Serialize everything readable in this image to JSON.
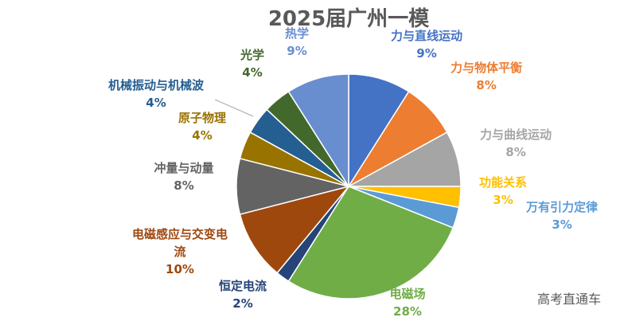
{
  "chart_data": {
    "type": "pie",
    "title": "2025届广州一模",
    "slices": [
      {
        "name": "力与直线运动",
        "label_lines": [
          "力与直线运动"
        ],
        "value": 9,
        "value_label": "9%",
        "color": "#4472C4"
      },
      {
        "name": "力与物体平衡",
        "label_lines": [
          "力与物体平衡"
        ],
        "value": 8,
        "value_label": "8%",
        "color": "#ED7D31"
      },
      {
        "name": "力与曲线运动",
        "label_lines": [
          "力与曲线运动"
        ],
        "value": 8,
        "value_label": "8%",
        "color": "#A5A5A5"
      },
      {
        "name": "功能关系",
        "label_lines": [
          "功能关系"
        ],
        "value": 3,
        "value_label": "3%",
        "color": "#FFC000"
      },
      {
        "name": "万有引力定律",
        "label_lines": [
          "万有引力定律"
        ],
        "value": 3,
        "value_label": "3%",
        "color": "#5B9BD5"
      },
      {
        "name": "电磁场",
        "label_lines": [
          "电磁场"
        ],
        "value": 28,
        "value_label": "28%",
        "color": "#70AD47"
      },
      {
        "name": "恒定电流",
        "label_lines": [
          "恒定电流"
        ],
        "value": 2,
        "value_label": "2%",
        "color": "#264478"
      },
      {
        "name": "电磁感应与交变电流",
        "label_lines": [
          "电磁感应与交变电",
          "流"
        ],
        "value": 10,
        "value_label": "10%",
        "color": "#9E480E"
      },
      {
        "name": "冲量与动量",
        "label_lines": [
          "冲量与动量"
        ],
        "value": 8,
        "value_label": "8%",
        "color": "#636363"
      },
      {
        "name": "原子物理",
        "label_lines": [
          "原子物理"
        ],
        "value": 4,
        "value_label": "4%",
        "color": "#997300"
      },
      {
        "name": "机械振动与机械波",
        "label_lines": [
          "机械振动与机械波"
        ],
        "value": 4,
        "value_label": "4%",
        "color": "#255E91"
      },
      {
        "name": "光学",
        "label_lines": [
          "光学"
        ],
        "value": 4,
        "value_label": "4%",
        "color": "#43682B"
      },
      {
        "name": "热学",
        "label_lines": [
          "热学"
        ],
        "value": 9,
        "value_label": "9%",
        "color": "#698ED0"
      }
    ],
    "legend": "none"
  },
  "watermark": "高考直通车"
}
